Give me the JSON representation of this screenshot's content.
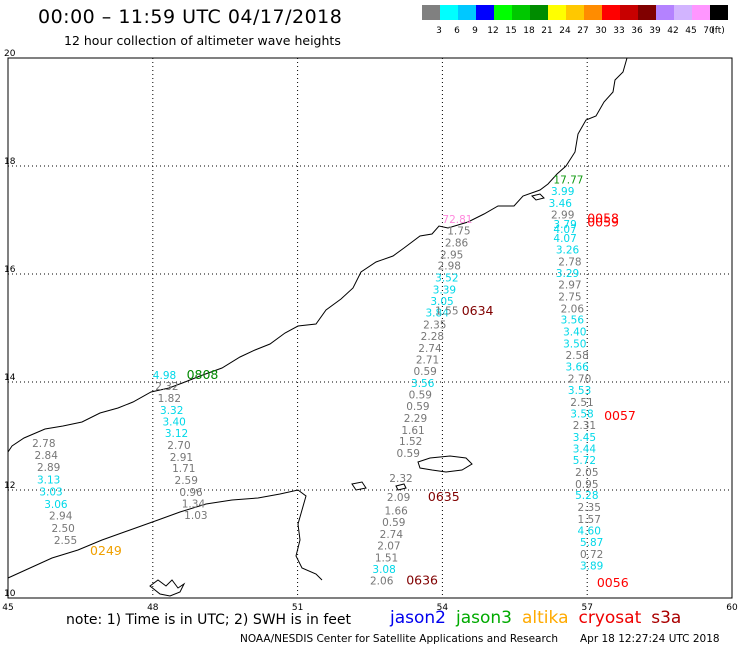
{
  "title": "00:00 – 11:59 UTC 04/17/2018",
  "subtitle": "12 hour collection of altimeter wave heights",
  "color_scale": {
    "unit": "(ft)",
    "bins": [
      {
        "label": "3",
        "color": "#808080"
      },
      {
        "label": "6",
        "color": "#00ffff"
      },
      {
        "label": "9",
        "color": "#00c8ff"
      },
      {
        "label": "12",
        "color": "#0000ff"
      },
      {
        "label": "15",
        "color": "#00ff00"
      },
      {
        "label": "18",
        "color": "#00c800"
      },
      {
        "label": "21",
        "color": "#008c00"
      },
      {
        "label": "24",
        "color": "#ffff00"
      },
      {
        "label": "27",
        "color": "#ffc800"
      },
      {
        "label": "30",
        "color": "#ff8c00"
      },
      {
        "label": "33",
        "color": "#ff0000"
      },
      {
        "label": "36",
        "color": "#c80000"
      },
      {
        "label": "39",
        "color": "#800000"
      },
      {
        "label": "42",
        "color": "#b482ff"
      },
      {
        "label": "45",
        "color": "#d2b4ff"
      },
      {
        "label": "70",
        "color": "#ff96ff"
      },
      {
        "label": "",
        "color": "#000000"
      }
    ]
  },
  "axes": {
    "x_ticks": [
      "45",
      "48",
      "51",
      "54",
      "57",
      "60"
    ],
    "y_ticks": [
      "20",
      "18",
      "16",
      "14",
      "12",
      "10"
    ],
    "lon_range": [
      45,
      60
    ],
    "lat_range": [
      10,
      20
    ]
  },
  "colors": {
    "gray": "#777777",
    "cyan": "#00d8e8",
    "green": "#119911",
    "pink": "#ff88dd"
  },
  "tracks": [
    {
      "pass_time": "0249",
      "time_color": "#f0a000",
      "time_lon": 46.7,
      "time_lat": 10.8,
      "points": [
        {
          "v": "2.78",
          "c": "gray",
          "lon": 45.5,
          "lat": 12.8
        },
        {
          "v": "2.84",
          "c": "gray",
          "lon": 45.55,
          "lat": 12.57
        },
        {
          "v": "2.89",
          "c": "gray",
          "lon": 45.6,
          "lat": 12.35
        },
        {
          "v": "3.13",
          "c": "cyan",
          "lon": 45.6,
          "lat": 12.12
        },
        {
          "v": "3.03",
          "c": "cyan",
          "lon": 45.65,
          "lat": 11.9
        },
        {
          "v": "3.06",
          "c": "cyan",
          "lon": 45.75,
          "lat": 11.67
        },
        {
          "v": "2.94",
          "c": "gray",
          "lon": 45.85,
          "lat": 11.45
        },
        {
          "v": "2.50",
          "c": "gray",
          "lon": 45.9,
          "lat": 11.22
        },
        {
          "v": "2.55",
          "c": "gray",
          "lon": 45.95,
          "lat": 11.0
        }
      ]
    },
    {
      "pass_time": "0808",
      "time_color": "#008800",
      "time_lon": 48.7,
      "time_lat": 14.06,
      "points": [
        {
          "v": "4.98",
          "c": "cyan",
          "lon": 48.0,
          "lat": 14.06
        },
        {
          "v": "2.32",
          "c": "gray",
          "lon": 48.05,
          "lat": 13.85
        },
        {
          "v": "1.82",
          "c": "gray",
          "lon": 48.1,
          "lat": 13.63
        },
        {
          "v": "3.32",
          "c": "cyan",
          "lon": 48.15,
          "lat": 13.41
        },
        {
          "v": "3.40",
          "c": "cyan",
          "lon": 48.2,
          "lat": 13.19
        },
        {
          "v": "3.12",
          "c": "cyan",
          "lon": 48.25,
          "lat": 12.98
        },
        {
          "v": "2.70",
          "c": "gray",
          "lon": 48.3,
          "lat": 12.76
        },
        {
          "v": "2.91",
          "c": "gray",
          "lon": 48.35,
          "lat": 12.54
        },
        {
          "v": "1.71",
          "c": "gray",
          "lon": 48.4,
          "lat": 12.33
        },
        {
          "v": "2.59",
          "c": "gray",
          "lon": 48.45,
          "lat": 12.11
        },
        {
          "v": "0.96",
          "c": "gray",
          "lon": 48.55,
          "lat": 11.89
        },
        {
          "v": "1.34",
          "c": "gray",
          "lon": 48.6,
          "lat": 11.68
        },
        {
          "v": "1.03",
          "c": "gray",
          "lon": 48.65,
          "lat": 11.46
        }
      ]
    },
    {
      "pass_time": "0634",
      "time_color": "#800000",
      "time_lon": 54.4,
      "time_lat": 15.24,
      "points": [
        {
          "v": "72.81",
          "c": "pink",
          "lon": 54.0,
          "lat": 16.94
        },
        {
          "v": "1.75",
          "c": "gray",
          "lon": 54.1,
          "lat": 16.73
        },
        {
          "v": "2.86",
          "c": "gray",
          "lon": 54.05,
          "lat": 16.51
        },
        {
          "v": "2.95",
          "c": "gray",
          "lon": 53.95,
          "lat": 16.29
        },
        {
          "v": "2.98",
          "c": "gray",
          "lon": 53.9,
          "lat": 16.08
        },
        {
          "v": "3.52",
          "c": "cyan",
          "lon": 53.85,
          "lat": 15.86
        },
        {
          "v": "3.39",
          "c": "cyan",
          "lon": 53.8,
          "lat": 15.64
        },
        {
          "v": "3.05",
          "c": "cyan",
          "lon": 53.75,
          "lat": 15.43
        },
        {
          "v": "3.84",
          "c": "cyan",
          "lon": 53.65,
          "lat": 15.21
        },
        {
          "v": "1.55",
          "c": "gray",
          "lon": 53.85,
          "lat": 15.25
        },
        {
          "v": "2.35",
          "c": "gray",
          "lon": 53.6,
          "lat": 14.99
        },
        {
          "v": "2.28",
          "c": "gray",
          "lon": 53.55,
          "lat": 14.78
        },
        {
          "v": "2.74",
          "c": "gray",
          "lon": 53.5,
          "lat": 14.56
        },
        {
          "v": "2.71",
          "c": "gray",
          "lon": 53.45,
          "lat": 14.34
        },
        {
          "v": "0.59",
          "c": "gray",
          "lon": 53.4,
          "lat": 14.13
        },
        {
          "v": "3.56",
          "c": "cyan",
          "lon": 53.35,
          "lat": 13.91
        },
        {
          "v": "0.59",
          "c": "gray",
          "lon": 53.3,
          "lat": 13.69
        },
        {
          "v": "0.59",
          "c": "gray",
          "lon": 53.25,
          "lat": 13.48
        },
        {
          "v": "2.29",
          "c": "gray",
          "lon": 53.2,
          "lat": 13.26
        },
        {
          "v": "1.61",
          "c": "gray",
          "lon": 53.15,
          "lat": 13.04
        },
        {
          "v": "1.52",
          "c": "gray",
          "lon": 53.1,
          "lat": 12.83
        },
        {
          "v": "0.59",
          "c": "gray",
          "lon": 53.05,
          "lat": 12.61
        }
      ]
    },
    {
      "pass_time": "0635",
      "time_color": "#800000",
      "time_lon": 53.7,
      "time_lat": 11.8,
      "points": [
        {
          "v": "2.32",
          "c": "gray",
          "lon": 52.9,
          "lat": 12.15
        },
        {
          "v": "2.09",
          "c": "gray",
          "lon": 52.85,
          "lat": 11.8
        },
        {
          "v": "1.66",
          "c": "gray",
          "lon": 52.8,
          "lat": 11.55
        },
        {
          "v": "0.59",
          "c": "gray",
          "lon": 52.75,
          "lat": 11.33
        },
        {
          "v": "2.74",
          "c": "gray",
          "lon": 52.7,
          "lat": 11.11
        },
        {
          "v": "2.07",
          "c": "gray",
          "lon": 52.65,
          "lat": 10.9
        },
        {
          "v": "1.51",
          "c": "gray",
          "lon": 52.6,
          "lat": 10.68
        },
        {
          "v": "3.08",
          "c": "cyan",
          "lon": 52.55,
          "lat": 10.46
        },
        {
          "v": "2.06",
          "c": "gray",
          "lon": 52.5,
          "lat": 10.25
        }
      ]
    },
    {
      "pass_time": "0636",
      "time_color": "#800000",
      "time_lon": 53.25,
      "time_lat": 10.25,
      "points": []
    },
    {
      "pass_time": "0058",
      "time_color": "#ff0000",
      "time_lon": 57.0,
      "time_lat": 16.95,
      "points": [
        {
          "v": "17.77",
          "c": "green",
          "lon": 56.3,
          "lat": 17.68
        },
        {
          "v": "3.99",
          "c": "cyan",
          "lon": 56.25,
          "lat": 17.46
        },
        {
          "v": "3.46",
          "c": "cyan",
          "lon": 56.2,
          "lat": 17.24
        },
        {
          "v": "2.99",
          "c": "gray",
          "lon": 56.25,
          "lat": 17.03
        },
        {
          "v": "3.79",
          "c": "cyan",
          "lon": 56.3,
          "lat": 16.85
        },
        {
          "v": "4.07",
          "c": "cyan",
          "lon": 56.3,
          "lat": 16.76
        },
        {
          "v": "4.07",
          "c": "cyan",
          "lon": 56.3,
          "lat": 16.59
        },
        {
          "v": "3.26",
          "c": "cyan",
          "lon": 56.35,
          "lat": 16.38
        },
        {
          "v": "2.78",
          "c": "gray",
          "lon": 56.4,
          "lat": 16.16
        },
        {
          "v": "3.29",
          "c": "cyan",
          "lon": 56.35,
          "lat": 15.94
        },
        {
          "v": "2.97",
          "c": "gray",
          "lon": 56.4,
          "lat": 15.73
        },
        {
          "v": "2.75",
          "c": "gray",
          "lon": 56.4,
          "lat": 15.51
        },
        {
          "v": "2.06",
          "c": "gray",
          "lon": 56.45,
          "lat": 15.29
        },
        {
          "v": "3.56",
          "c": "cyan",
          "lon": 56.45,
          "lat": 15.08
        },
        {
          "v": "3.40",
          "c": "cyan",
          "lon": 56.5,
          "lat": 14.86
        },
        {
          "v": "3.50",
          "c": "cyan",
          "lon": 56.5,
          "lat": 14.64
        },
        {
          "v": "2.58",
          "c": "gray",
          "lon": 56.55,
          "lat": 14.43
        },
        {
          "v": "3.66",
          "c": "cyan",
          "lon": 56.55,
          "lat": 14.21
        },
        {
          "v": "2.70",
          "c": "gray",
          "lon": 56.6,
          "lat": 13.99
        },
        {
          "v": "3.53",
          "c": "cyan",
          "lon": 56.6,
          "lat": 13.78
        },
        {
          "v": "2.51",
          "c": "gray",
          "lon": 56.65,
          "lat": 13.56
        },
        {
          "v": "3.58",
          "c": "cyan",
          "lon": 56.65,
          "lat": 13.34
        },
        {
          "v": "2.31",
          "c": "gray",
          "lon": 56.7,
          "lat": 13.13
        },
        {
          "v": "3.45",
          "c": "cyan",
          "lon": 56.7,
          "lat": 12.91
        },
        {
          "v": "3.44",
          "c": "cyan",
          "lon": 56.7,
          "lat": 12.69
        },
        {
          "v": "5.72",
          "c": "cyan",
          "lon": 56.7,
          "lat": 12.48
        },
        {
          "v": "2.05",
          "c": "gray",
          "lon": 56.75,
          "lat": 12.26
        },
        {
          "v": "0.95",
          "c": "gray",
          "lon": 56.75,
          "lat": 12.04
        },
        {
          "v": "5.28",
          "c": "cyan",
          "lon": 56.75,
          "lat": 11.83
        },
        {
          "v": "2.35",
          "c": "gray",
          "lon": 56.8,
          "lat": 11.61
        },
        {
          "v": "1.57",
          "c": "gray",
          "lon": 56.8,
          "lat": 11.39
        },
        {
          "v": "4.60",
          "c": "cyan",
          "lon": 56.8,
          "lat": 11.18
        },
        {
          "v": "5.87",
          "c": "cyan",
          "lon": 56.85,
          "lat": 10.96
        },
        {
          "v": "0.72",
          "c": "gray",
          "lon": 56.85,
          "lat": 10.74
        },
        {
          "v": "3.89",
          "c": "cyan",
          "lon": 56.85,
          "lat": 10.53
        }
      ]
    },
    {
      "pass_time": "0059",
      "time_color": "#ff0000",
      "time_lon": 57.0,
      "time_lat": 16.88,
      "points": []
    },
    {
      "pass_time": "0057",
      "time_color": "#ff0000",
      "time_lon": 57.35,
      "time_lat": 13.3,
      "points": []
    },
    {
      "pass_time": "0056",
      "time_color": "#ff0000",
      "time_lon": 57.2,
      "time_lat": 10.2,
      "points": []
    }
  ],
  "note": "note:  1) Time is in UTC;  2) SWH is in feet",
  "satellites": [
    {
      "name": "jason2",
      "color": "#0000ee"
    },
    {
      "name": "jason3",
      "color": "#00aa00"
    },
    {
      "name": "altika",
      "color": "#ffaa00"
    },
    {
      "name": "cryosat",
      "color": "#ee0000"
    },
    {
      "name": "s3a",
      "color": "#aa0000"
    }
  ],
  "credit": "NOAA/NESDIS Center for Satellite Applications and Research",
  "timestamp": "Apr 18 12:27:24 UTC 2018"
}
